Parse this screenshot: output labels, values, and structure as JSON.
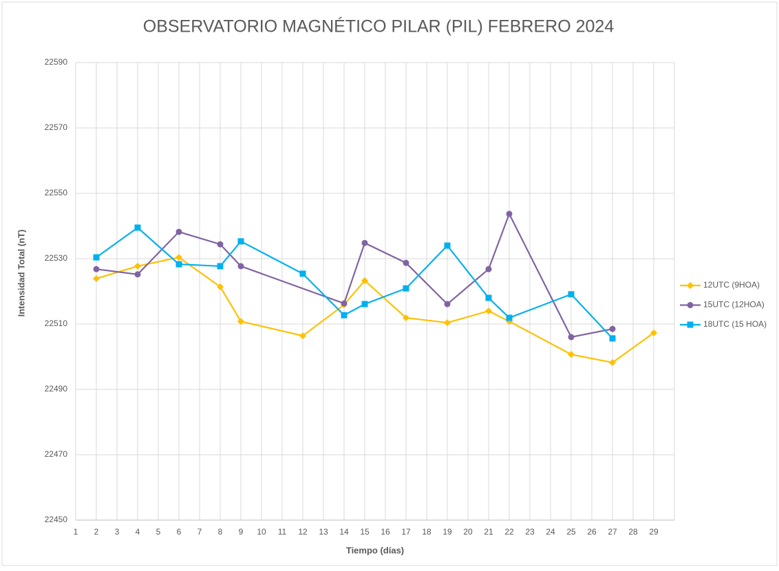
{
  "chart_data": {
    "type": "line",
    "title": "OBSERVATORIO MAGNÉTICO PILAR (PIL) FEBRERO 2024",
    "x_label": "Tiempo (días)",
    "y_label": "Intensidad Total (nT)",
    "xlim": [
      1,
      30
    ],
    "xticks": [
      1,
      2,
      3,
      4,
      5,
      6,
      7,
      8,
      9,
      10,
      11,
      12,
      13,
      14,
      15,
      16,
      17,
      18,
      19,
      20,
      21,
      22,
      23,
      24,
      25,
      26,
      27,
      28,
      29
    ],
    "ylim": [
      22450,
      22590
    ],
    "yticks": [
      22450,
      22470,
      22490,
      22510,
      22530,
      22550,
      22570,
      22590
    ],
    "grid": true,
    "legend": "right",
    "series": [
      {
        "name": "12UTC (9HOA)",
        "color": "#ffc000",
        "marker": "diamond",
        "x": [
          2,
          4,
          6,
          8,
          9,
          12,
          14,
          15,
          17,
          19,
          21,
          22,
          25,
          27,
          29
        ],
        "values": [
          22523.9,
          22527.7,
          22530.4,
          22521.4,
          22510.8,
          22506.4,
          22515.9,
          22523.3,
          22511.9,
          22510.4,
          22514,
          22510.8,
          22500.7,
          22498.2,
          22507.3
        ]
      },
      {
        "name": "15UTC (12HOA)",
        "color": "#8064a2",
        "marker": "circle",
        "x": [
          2,
          4,
          6,
          8,
          9,
          14,
          15,
          17,
          19,
          21,
          22,
          25,
          27
        ],
        "values": [
          22526.8,
          22525.2,
          22538.2,
          22534.4,
          22527.7,
          22516.3,
          22534.8,
          22528.7,
          22516.1,
          22526.8,
          22543.7,
          22506,
          22508.5
        ]
      },
      {
        "name": "18UTC (15 HOA)",
        "color": "#00b0f0",
        "marker": "square",
        "x": [
          2,
          4,
          6,
          8,
          9,
          12,
          14,
          15,
          17,
          19,
          21,
          22,
          25,
          27
        ],
        "values": [
          22530.4,
          22539.5,
          22528.3,
          22527.7,
          22535.3,
          22525.4,
          22512.7,
          22516.1,
          22520.9,
          22534,
          22518,
          22511.9,
          22519.1,
          22505.6
        ]
      }
    ]
  }
}
